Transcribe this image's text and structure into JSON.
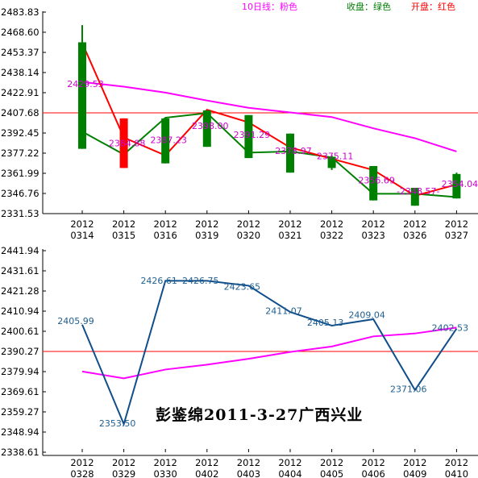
{
  "legend": {
    "ma10": "10日线：粉色",
    "close": "收盘：绿色",
    "open": "开盘：红色"
  },
  "colors": {
    "ma": "#ff00ff",
    "close": "#008000",
    "open": "#ff0000",
    "bull": "#ff0000",
    "bear": "#008000",
    "ref_line": "#ff0000",
    "bottom_line": "#104e8b",
    "top_label": "#cc00cc",
    "bottom_label": "#1f5f8f",
    "grid": "#000000"
  },
  "watermark": "彭鉴绵2011-3-27广西兴业",
  "chart_data": [
    {
      "type": "candlestick",
      "ylim": [
        2331.53,
        2483.83
      ],
      "y_ticks": [
        "2483.83",
        "2468.60",
        "2453.37",
        "2438.14",
        "2422.91",
        "2407.68",
        "2392.45",
        "2377.22",
        "2361.99",
        "2346.76",
        "2331.53"
      ],
      "x_labels": [
        [
          "2012",
          "0314"
        ],
        [
          "2012",
          "0315"
        ],
        [
          "2012",
          "0316"
        ],
        [
          "2012",
          "0319"
        ],
        [
          "2012",
          "0320"
        ],
        [
          "2012",
          "0321"
        ],
        [
          "2012",
          "0322"
        ],
        [
          "2012",
          "0323"
        ],
        [
          "2012",
          "0326"
        ],
        [
          "2012",
          "0327"
        ]
      ],
      "candles": [
        {
          "open": 2461.0,
          "close": 2380.5,
          "high": 2474.0,
          "low": 2380.5
        },
        {
          "open": 2366.0,
          "close": 2403.5,
          "high": 2403.5,
          "low": 2366.0
        },
        {
          "open": 2403.5,
          "close": 2369.5,
          "high": 2403.5,
          "low": 2369.5
        },
        {
          "open": 2409.5,
          "close": 2382.0,
          "high": 2409.5,
          "low": 2382.0
        },
        {
          "open": 2406.0,
          "close": 2373.5,
          "high": 2406.0,
          "low": 2373.5
        },
        {
          "open": 2392.0,
          "close": 2362.5,
          "high": 2392.0,
          "low": 2362.5
        },
        {
          "open": 2374.5,
          "close": 2366.0,
          "high": 2375.5,
          "low": 2364.5
        },
        {
          "open": 2367.5,
          "close": 2341.5,
          "high": 2367.5,
          "low": 2341.5
        },
        {
          "open": 2351.0,
          "close": 2337.5,
          "high": 2351.0,
          "low": 2337.5
        },
        {
          "open": 2361.5,
          "close": 2343.0,
          "high": 2362.5,
          "low": 2343.0
        }
      ],
      "close_line": [
        2393.5,
        2376.2,
        2404.0,
        2407.5,
        2377.6,
        2378.5,
        2374.0,
        2346.5,
        2346.5,
        2344.0
      ],
      "open_line": [
        2460.5,
        2389.0,
        2375.5,
        2410.0,
        2400.5,
        2381.5,
        2373.0,
        2364.5,
        2345.0,
        2353.5
      ],
      "ma10": [
        2431.0,
        2427.5,
        2423.0,
        2417.0,
        2411.5,
        2408.0,
        2404.5,
        2396.0,
        2388.5,
        2378.5
      ],
      "reference_line": 2407.68,
      "annotations": [
        {
          "x": 0,
          "text": "2429.53"
        },
        {
          "x": 1,
          "text": "2384.88"
        },
        {
          "x": 2,
          "text": "2387.23"
        },
        {
          "x": 3,
          "text": "2398.00"
        },
        {
          "x": 4,
          "text": "2391.29"
        },
        {
          "x": 5,
          "text": "2378.97"
        },
        {
          "x": 6,
          "text": "2375.11"
        },
        {
          "x": 7,
          "text": "2356.69"
        },
        {
          "x": 8,
          "text": "-2348.57-"
        },
        {
          "x": 9,
          "text": "2354.04"
        }
      ]
    },
    {
      "type": "line",
      "ylim": [
        2338.61,
        2441.94
      ],
      "y_ticks": [
        "2441.94",
        "2431.61",
        "2421.28",
        "2410.94",
        "2400.61",
        "2390.27",
        "2379.94",
        "2369.61",
        "2359.27",
        "2348.94",
        "2338.61"
      ],
      "x_labels": [
        [
          "2012",
          "0328"
        ],
        [
          "2012",
          "0329"
        ],
        [
          "2012",
          "0330"
        ],
        [
          "2012",
          "0402"
        ],
        [
          "2012",
          "0403"
        ],
        [
          "2012",
          "0404"
        ],
        [
          "2012",
          "0405"
        ],
        [
          "2012",
          "0406"
        ],
        [
          "2012",
          "0409"
        ],
        [
          "2012",
          "0410"
        ]
      ],
      "series": [
        {
          "values": [
            2404.0,
            2353.0,
            2426.5,
            2426.5,
            2424.0,
            2410.5,
            2403.5,
            2406.8,
            2370.5,
            2402.0
          ]
        },
        {
          "values": [
            2380.0,
            2376.5,
            2381.0,
            2383.5,
            2386.5,
            2390.0,
            2392.8,
            2398.0,
            2399.5,
            2402.5
          ]
        }
      ],
      "reference_line": 2390.27,
      "annotations": [
        {
          "x": 0,
          "text": "2405.99"
        },
        {
          "x": 1,
          "text": "2353.50"
        },
        {
          "x": 2,
          "text": "2426.61"
        },
        {
          "x": 3,
          "text": "2426.75"
        },
        {
          "x": 4,
          "text": "2423.65"
        },
        {
          "x": 5,
          "text": "2411.07"
        },
        {
          "x": 6,
          "text": "2405.13"
        },
        {
          "x": 7,
          "text": "2409.04"
        },
        {
          "x": 8,
          "text": "2371.06"
        },
        {
          "x": 9,
          "text": "2402.53"
        }
      ]
    }
  ]
}
